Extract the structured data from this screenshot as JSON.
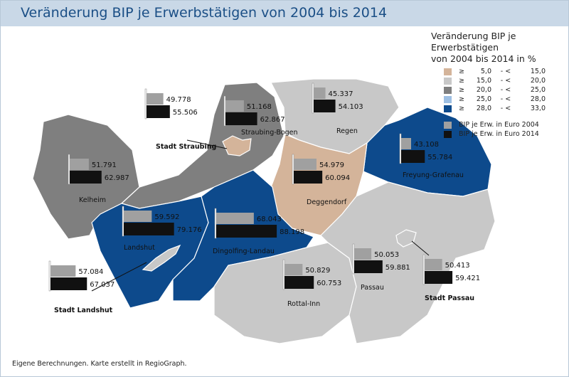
{
  "title": "Veränderung BIP je Erwerbstätigen von 2004 bis 2014",
  "legend": {
    "heading_line1": "Veränderung BIP je Erwerbstätigen",
    "heading_line2": "von 2004 bis 2014 in %",
    "classes": [
      {
        "op": "≥",
        "from": "5,0",
        "sep": "-  <",
        "to": "15,0",
        "color": "#d4b49a"
      },
      {
        "op": "≥",
        "from": "15,0",
        "sep": "-  <",
        "to": "20,0",
        "color": "#c8c8c8"
      },
      {
        "op": "≥",
        "from": "20,0",
        "sep": "-  <",
        "to": "25,0",
        "color": "#7f7f7f"
      },
      {
        "op": "≥",
        "from": "25,0",
        "sep": "-  <",
        "to": "28,0",
        "color": "#9dbfe3"
      },
      {
        "op": "≥",
        "from": "28,0",
        "sep": "-  <",
        "to": "33,0",
        "color": "#0d4a8c"
      }
    ],
    "bars": [
      {
        "label": "BIP je Erw. in Euro 2004",
        "color": "#a0a0a0"
      },
      {
        "label": "BIP je Erw. in Euro 2014",
        "color": "#111111"
      }
    ]
  },
  "regions": [
    {
      "name": "Stadt Straubing",
      "v2004": "49.778",
      "v2014": "55.506",
      "class": 0
    },
    {
      "name": "Straubing-Bogen",
      "v2004": "51.168",
      "v2014": "62.867",
      "class": 2
    },
    {
      "name": "Regen",
      "v2004": "45.337",
      "v2014": "54.103",
      "class": 1
    },
    {
      "name": "Kelheim",
      "v2004": "51.791",
      "v2014": "62.987",
      "class": 2
    },
    {
      "name": "Deggendorf",
      "v2004": "54.979",
      "v2014": "60.094",
      "class": 0
    },
    {
      "name": "Freyung-Grafenau",
      "v2004": "43.108",
      "v2014": "55.784",
      "class": 4
    },
    {
      "name": "Landshut",
      "v2004": "59.592",
      "v2014": "79.176",
      "class": 4
    },
    {
      "name": "Dingolfing-Landau",
      "v2004": "68.043",
      "v2014": "88.198",
      "class": 4
    },
    {
      "name": "Rottal-Inn",
      "v2004": "50.829",
      "v2014": "60.753",
      "class": 1
    },
    {
      "name": "Passau",
      "v2004": "50.053",
      "v2014": "59.881",
      "class": 1
    },
    {
      "name": "Stadt Passau",
      "v2004": "50.413",
      "v2014": "59.421",
      "class": 1
    },
    {
      "name": "Stadt Landshut",
      "v2004": "57.084",
      "v2014": "67.037",
      "class": 1
    }
  ],
  "footer": "Eigene Berechnungen. Karte erstellt in RegioGraph."
}
